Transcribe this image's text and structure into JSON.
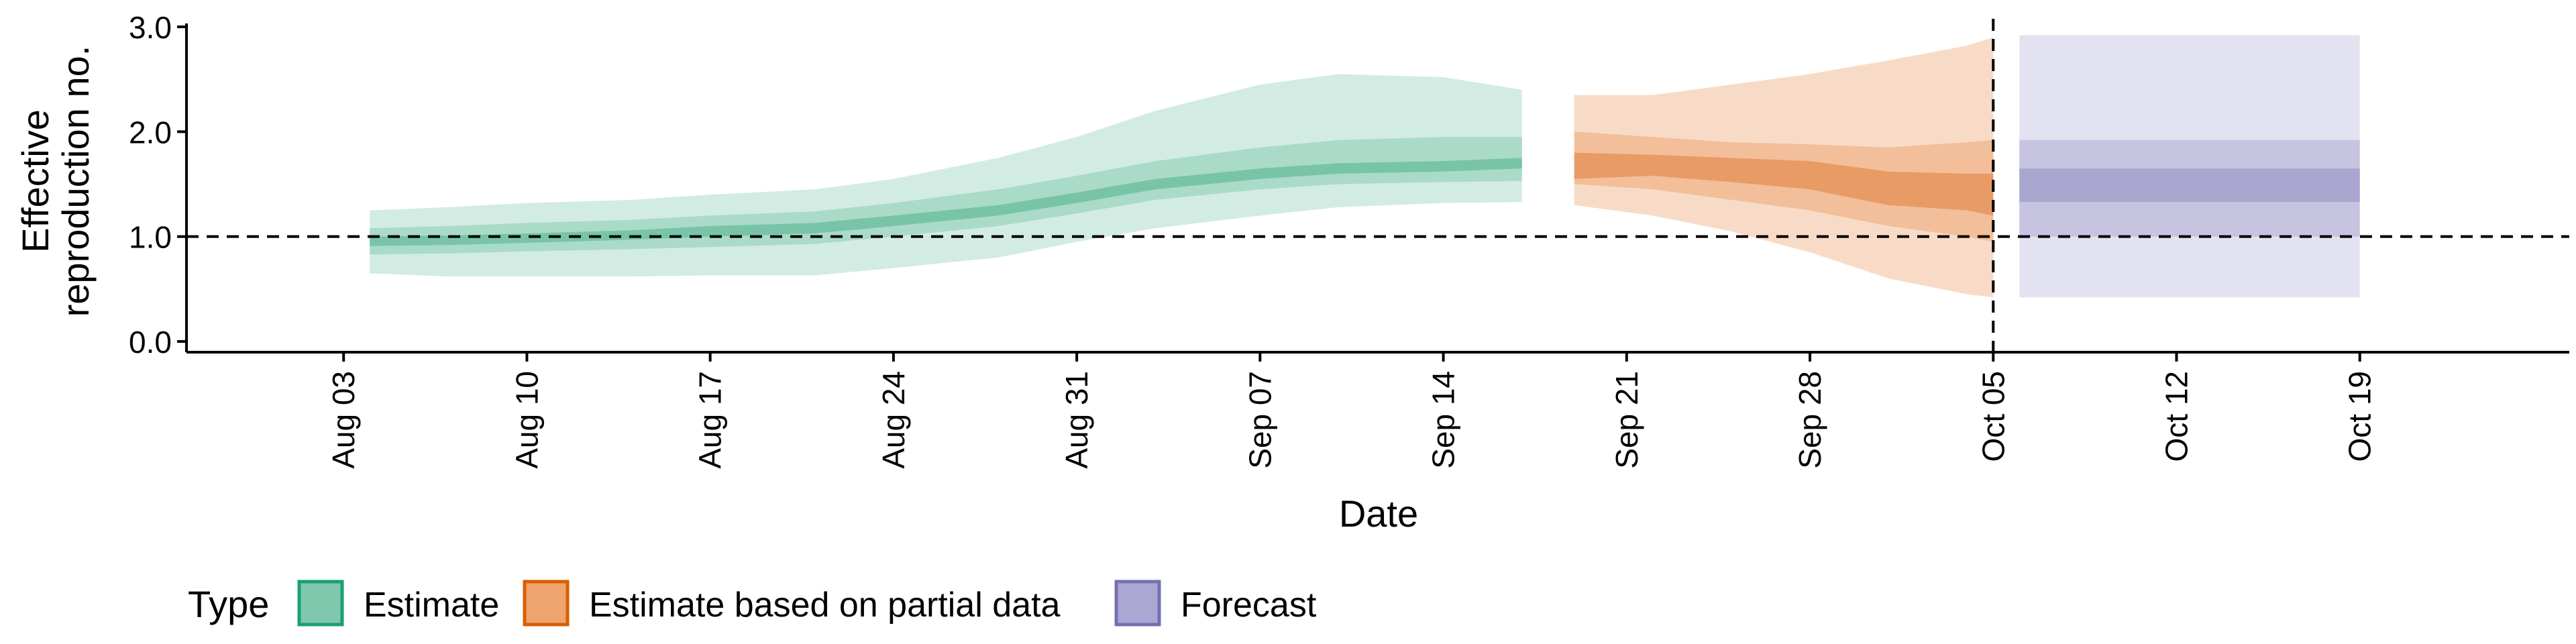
{
  "chart_data": {
    "type": "area",
    "ylabel_lines": [
      "Effective",
      "reproduction no."
    ],
    "xlabel": "Date",
    "ylim": [
      0.0,
      3.0
    ],
    "yticks": [
      {
        "value": 0.0,
        "label": "0.0"
      },
      {
        "value": 1.0,
        "label": "1.0"
      },
      {
        "value": 2.0,
        "label": "2.0"
      },
      {
        "value": 3.0,
        "label": "3.0"
      }
    ],
    "xlim": [
      "2020-07-28",
      "2020-10-27"
    ],
    "xticks": [
      {
        "date": "2020-08-03",
        "label": "Aug 03"
      },
      {
        "date": "2020-08-10",
        "label": "Aug 10"
      },
      {
        "date": "2020-08-17",
        "label": "Aug 17"
      },
      {
        "date": "2020-08-24",
        "label": "Aug 24"
      },
      {
        "date": "2020-08-31",
        "label": "Aug 31"
      },
      {
        "date": "2020-09-07",
        "label": "Sep 07"
      },
      {
        "date": "2020-09-14",
        "label": "Sep 14"
      },
      {
        "date": "2020-09-21",
        "label": "Sep 21"
      },
      {
        "date": "2020-09-28",
        "label": "Sep 28"
      },
      {
        "date": "2020-10-05",
        "label": "Oct 05"
      },
      {
        "date": "2020-10-12",
        "label": "Oct 12"
      },
      {
        "date": "2020-10-19",
        "label": "Oct 19"
      }
    ],
    "reference_line_y": 1.0,
    "vertical_line_date": "2020-10-05",
    "legend": {
      "title": "Type",
      "placement": "bottom-left",
      "entries": [
        {
          "label": "Estimate",
          "fill": "#7fc8ad",
          "stroke": "#1b9e77"
        },
        {
          "label": "Estimate based on partial data",
          "fill": "#eda46f",
          "stroke": "#d95f02"
        },
        {
          "label": "Forecast",
          "fill": "#aaa8d3",
          "stroke": "#7570b3"
        }
      ]
    },
    "series": [
      {
        "type_index": 0,
        "colors": {
          "outer": "#d3ece3",
          "middle": "#a9dbc8",
          "inner": "#79c4a8"
        },
        "x": [
          "2020-08-04",
          "2020-08-07",
          "2020-08-10",
          "2020-08-14",
          "2020-08-17",
          "2020-08-21",
          "2020-08-24",
          "2020-08-28",
          "2020-08-31",
          "2020-09-03",
          "2020-09-07",
          "2020-09-10",
          "2020-09-14",
          "2020-09-17"
        ],
        "outer_low": [
          0.65,
          0.62,
          0.62,
          0.62,
          0.63,
          0.63,
          0.7,
          0.8,
          0.95,
          1.08,
          1.2,
          1.28,
          1.32,
          1.33
        ],
        "outer_high": [
          1.25,
          1.28,
          1.32,
          1.35,
          1.4,
          1.45,
          1.55,
          1.75,
          1.95,
          2.2,
          2.45,
          2.55,
          2.52,
          2.4
        ],
        "mid_low": [
          0.83,
          0.84,
          0.86,
          0.88,
          0.9,
          0.93,
          1.0,
          1.1,
          1.22,
          1.35,
          1.45,
          1.5,
          1.52,
          1.53
        ],
        "mid_high": [
          1.08,
          1.1,
          1.13,
          1.16,
          1.2,
          1.24,
          1.32,
          1.45,
          1.58,
          1.72,
          1.85,
          1.92,
          1.95,
          1.95
        ],
        "inner_low": [
          0.91,
          0.92,
          0.94,
          0.97,
          1.0,
          1.03,
          1.1,
          1.2,
          1.32,
          1.45,
          1.55,
          1.6,
          1.62,
          1.65
        ],
        "inner_high": [
          1.0,
          1.01,
          1.03,
          1.06,
          1.1,
          1.13,
          1.2,
          1.3,
          1.42,
          1.55,
          1.65,
          1.7,
          1.72,
          1.75
        ]
      },
      {
        "type_index": 1,
        "colors": {
          "outer": "#f8dbc7",
          "middle": "#f2bf9a",
          "inner": "#e99b65"
        },
        "x": [
          "2020-09-19",
          "2020-09-22",
          "2020-09-25",
          "2020-09-28",
          "2020-10-01",
          "2020-10-04",
          "2020-10-05"
        ],
        "outer_low": [
          1.3,
          1.2,
          1.05,
          0.85,
          0.6,
          0.45,
          0.42
        ],
        "outer_high": [
          2.35,
          2.35,
          2.45,
          2.55,
          2.68,
          2.82,
          2.9
        ],
        "mid_low": [
          1.5,
          1.45,
          1.35,
          1.25,
          1.1,
          1.0,
          0.95
        ],
        "mid_high": [
          2.0,
          1.95,
          1.9,
          1.88,
          1.85,
          1.9,
          1.92
        ],
        "inner_low": [
          1.55,
          1.58,
          1.52,
          1.45,
          1.3,
          1.25,
          1.2
        ],
        "inner_high": [
          1.8,
          1.78,
          1.75,
          1.72,
          1.62,
          1.6,
          1.6
        ]
      },
      {
        "type_index": 2,
        "colors": {
          "outer": "#e3e2f0",
          "middle": "#c6c4e1",
          "inner": "#a9a6d0"
        },
        "x": [
          "2020-10-06",
          "2020-10-19"
        ],
        "outer_low": [
          0.42,
          0.42
        ],
        "outer_high": [
          2.92,
          2.92
        ],
        "mid_low": [
          1.0,
          1.0
        ],
        "mid_high": [
          1.92,
          1.92
        ],
        "inner_low": [
          1.33,
          1.33
        ],
        "inner_high": [
          1.65,
          1.65
        ]
      }
    ]
  }
}
